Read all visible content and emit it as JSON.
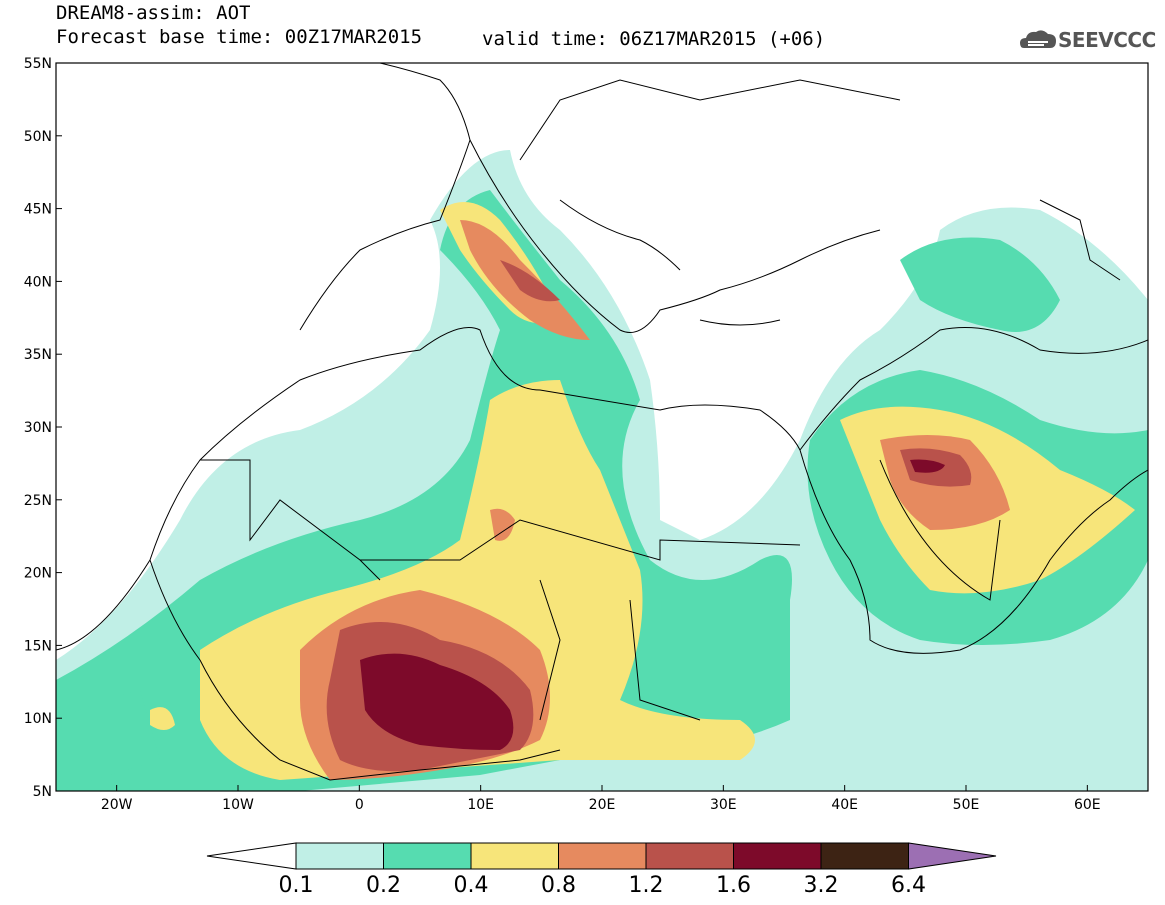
{
  "title": {
    "line1": "DREAM8-assim: AOT",
    "line2": "Forecast base time: 00Z17MAR2015",
    "valid": "valid time: 06Z17MAR2015 (+06)"
  },
  "logo": {
    "text": "SEEVCCC",
    "icon": "cloud-logo-icon"
  },
  "map": {
    "lon_range": [
      -25,
      65
    ],
    "lat_range": [
      5,
      55
    ],
    "lat_ticks": [
      "5N",
      "10N",
      "15N",
      "20N",
      "25N",
      "30N",
      "35N",
      "40N",
      "45N",
      "50N",
      "55N"
    ],
    "lon_ticks": [
      "20W",
      "10W",
      "0",
      "10E",
      "20E",
      "30E",
      "40E",
      "50E",
      "60E"
    ]
  },
  "legend": {
    "labels": [
      "0.1",
      "0.2",
      "0.4",
      "0.8",
      "1.2",
      "1.6",
      "3.2",
      "6.4"
    ],
    "colors": [
      "#ffffff",
      "#c0efe6",
      "#56dcb0",
      "#f7e57a",
      "#e68a5f",
      "#b9524b",
      "#7d0a2a",
      "#3d2314",
      "#9c6fb3"
    ]
  },
  "colors": {
    "c01": "#c0efe6",
    "c02": "#56dcb0",
    "c04": "#f7e57a",
    "c08": "#e68a5f",
    "c12": "#b9524b",
    "c16": "#7d0a2a"
  }
}
